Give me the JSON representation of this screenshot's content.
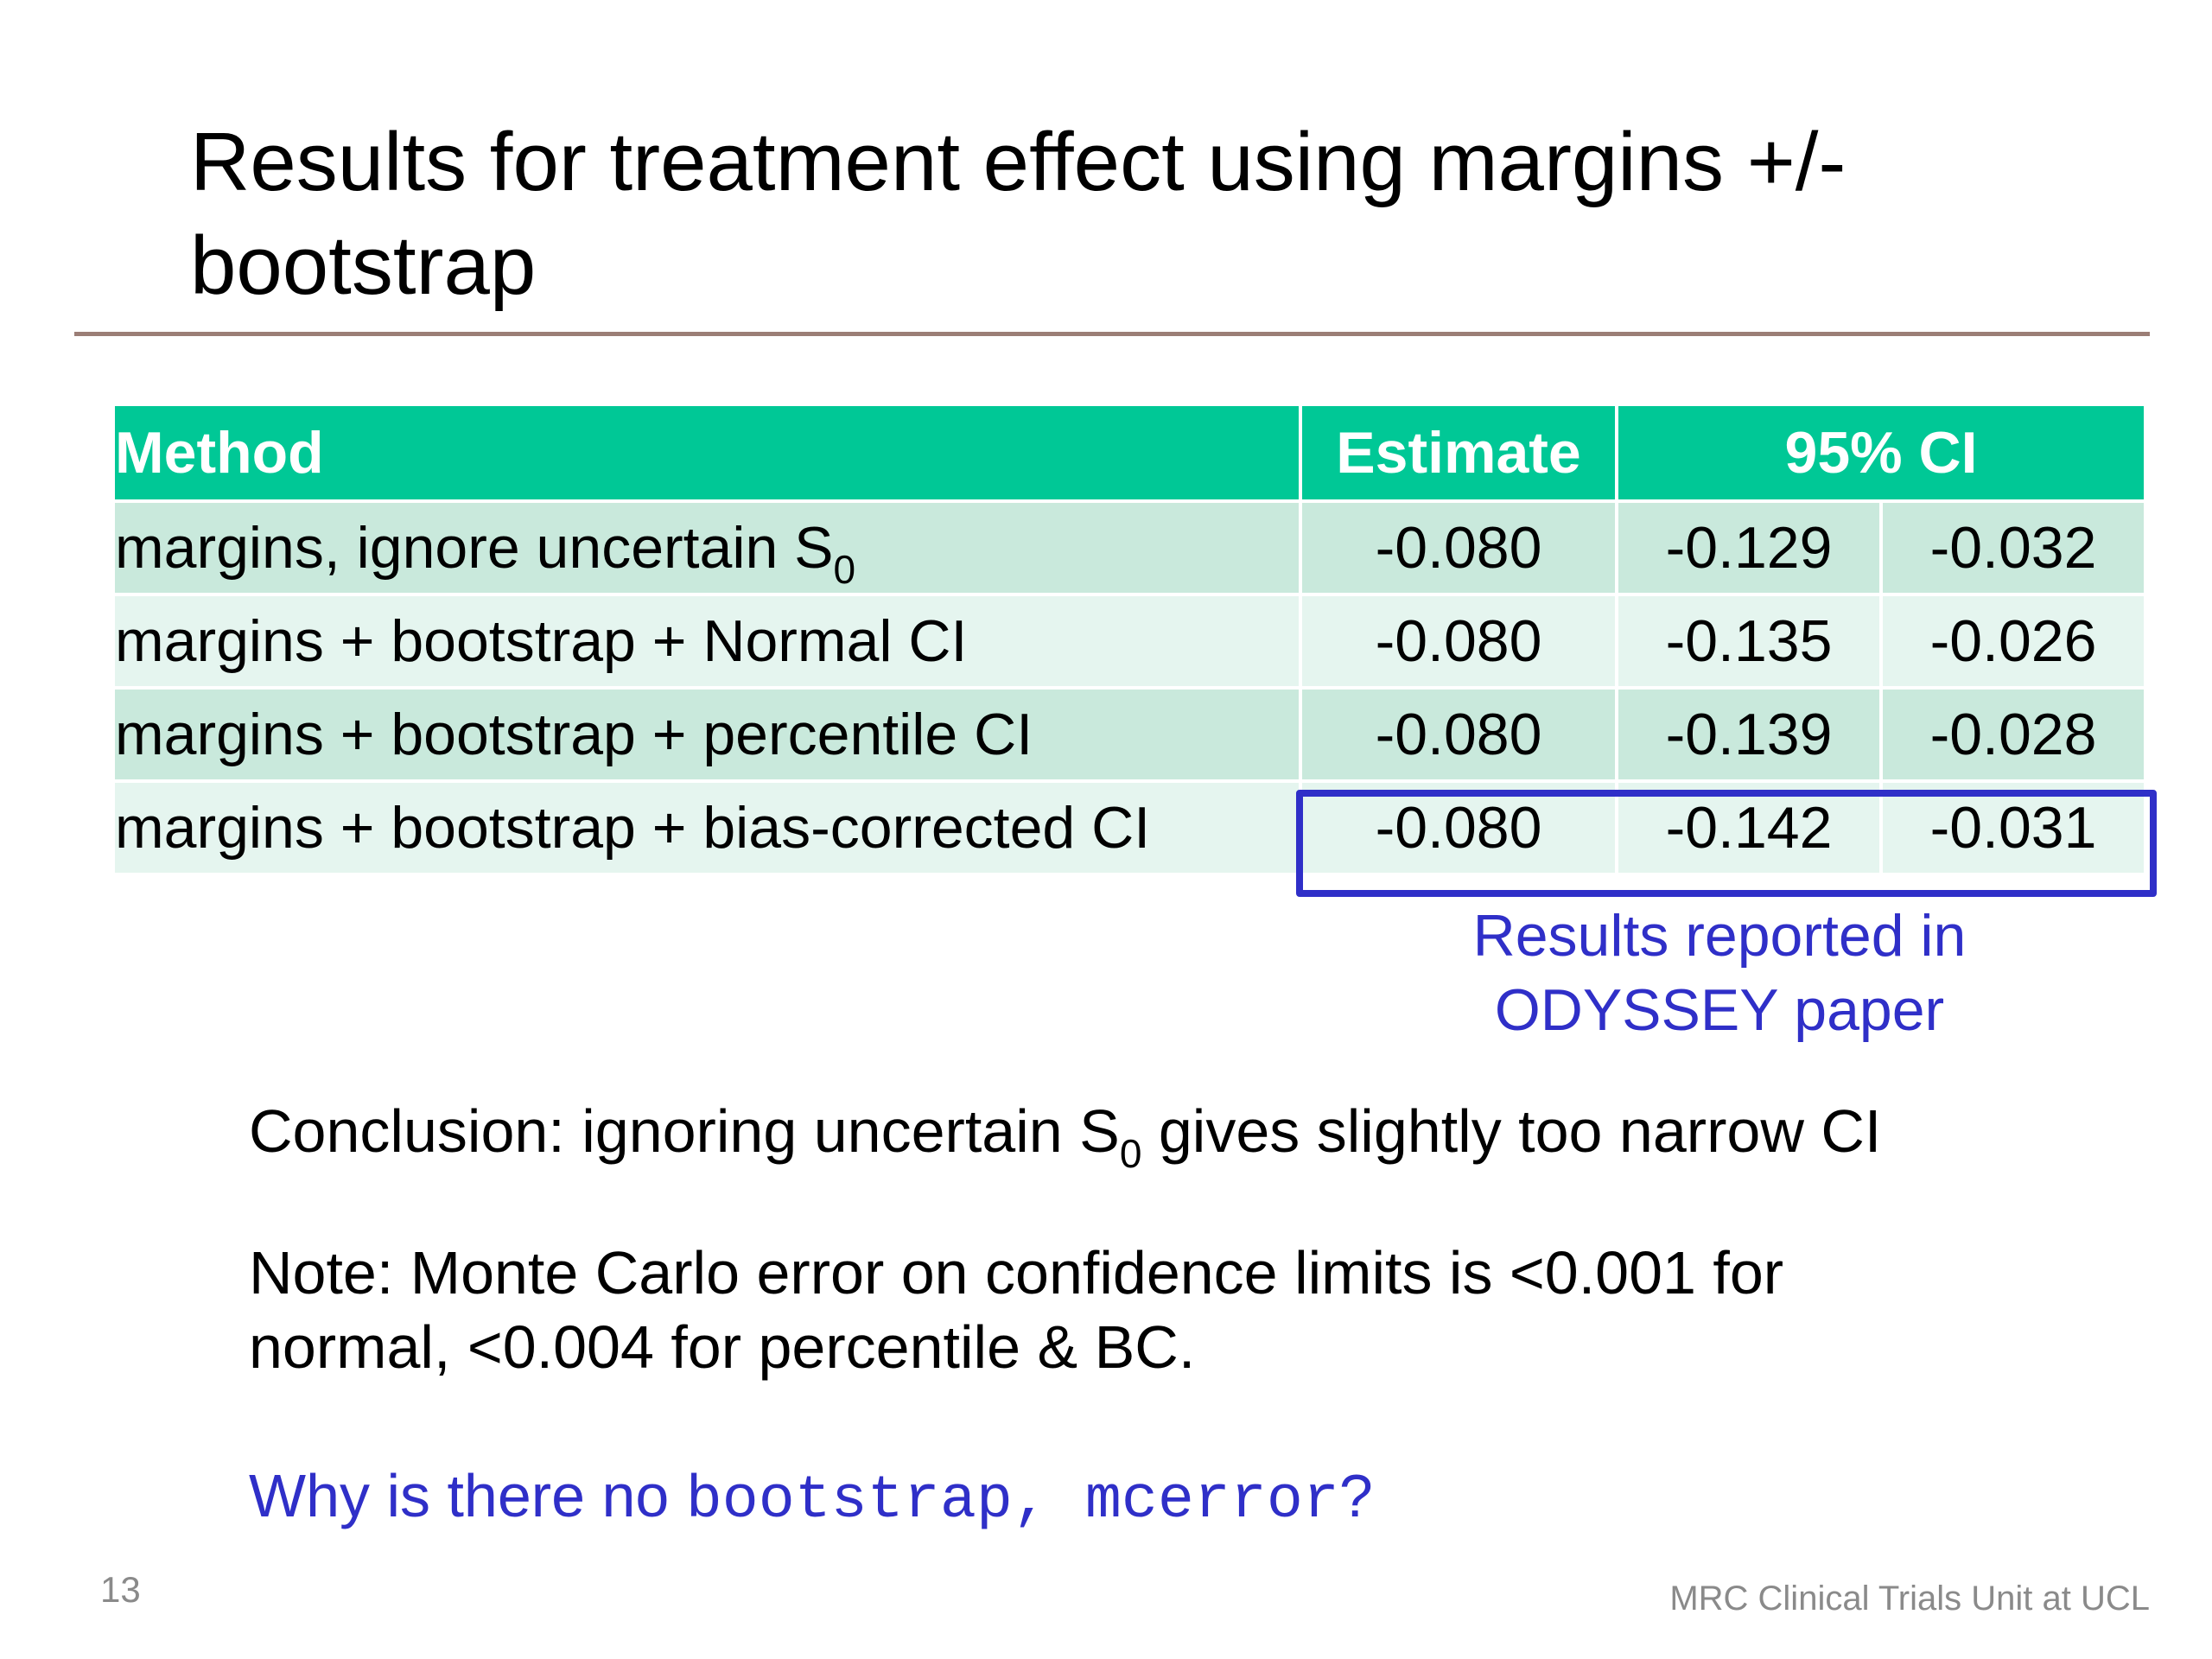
{
  "title": "Results for treatment effect using margins +/- bootstrap",
  "table": {
    "headers": {
      "method": "Method",
      "estimate": "Estimate",
      "ci": "95% CI"
    },
    "rows": [
      {
        "method": "margins, ignore uncertain S",
        "method_sub": "0",
        "estimate": "-0.080",
        "ci_low": "-0.129",
        "ci_high": "-0.032"
      },
      {
        "method": "margins + bootstrap + Normal CI",
        "estimate": "-0.080",
        "ci_low": "-0.135",
        "ci_high": "-0.026"
      },
      {
        "method": "margins + bootstrap + percentile CI",
        "estimate": "-0.080",
        "ci_low": "-0.139",
        "ci_high": "-0.028"
      },
      {
        "method": "margins + bootstrap + bias-corrected CI",
        "estimate": "-0.080",
        "ci_low": "-0.142",
        "ci_high": "-0.031"
      }
    ]
  },
  "highlight_note": "Results reported in ODYSSEY paper",
  "conclusion": {
    "before": "Conclusion: ignoring uncertain S",
    "sub": "0",
    "after": " gives slightly too narrow CI"
  },
  "note": "Note: Monte Carlo error on confidence limits is <0.001 for normal, <0.004 for percentile & BC.",
  "question": {
    "before": "Why is there no ",
    "code": "bootstrap, mcerror",
    "after": "?"
  },
  "page_number": "13",
  "footer": "MRC Clinical Trials Unit at UCL",
  "colors": {
    "header_bg": "#00c896",
    "row_dark": "#c9e9dc",
    "row_light": "#e5f5ef",
    "accent_blue": "#2f2fc8",
    "rule": "#9b7e76"
  }
}
